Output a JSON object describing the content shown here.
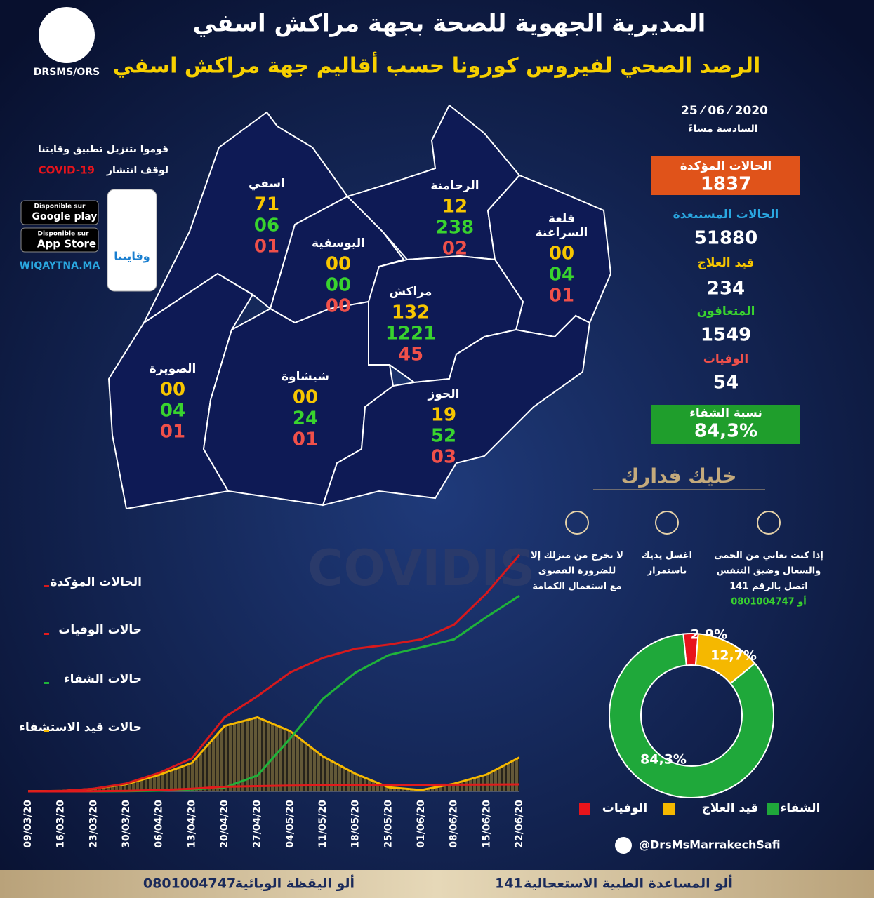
{
  "header": {
    "title": "المديرية الجهوية للصحة بجهة مراكش اسفي",
    "subtitle": "الرصد الصحي لفيروس كورونا حسب أقاليم جهة مراكش اسفي",
    "logo_label": "DRSMS/ORS"
  },
  "date": {
    "day": "25 ⁄ 06 ⁄ 2020",
    "time": "السادسة مساءً"
  },
  "stats": [
    {
      "label": "الحالات المؤكدة",
      "value": "1837"
    },
    {
      "label": "الحالات المستبعدة",
      "value": "51880"
    },
    {
      "label": "قيد العلاج",
      "value": "234"
    },
    {
      "label": "المتعافون",
      "value": "1549"
    },
    {
      "label": "الوفيات",
      "value": "54"
    },
    {
      "label": "نسبة الشفاء",
      "value": "84,3%"
    }
  ],
  "provinces": [
    {
      "name": [
        "اسفي"
      ],
      "values": [
        "71",
        "06",
        "01"
      ]
    },
    {
      "name": [
        "اليوسفية"
      ],
      "values": [
        "00",
        "00",
        "00"
      ]
    },
    {
      "name": [
        "الرحامنة"
      ],
      "values": [
        "12",
        "238",
        "02"
      ]
    },
    {
      "name": [
        "قلعة",
        "السراغنة"
      ],
      "values": [
        "00",
        "04",
        "01"
      ]
    },
    {
      "name": [
        "مراكش"
      ],
      "values": [
        "132",
        "1221",
        "45"
      ]
    },
    {
      "name": [
        "الصويرة"
      ],
      "values": [
        "00",
        "04",
        "01"
      ]
    },
    {
      "name": [
        "شيشاوة"
      ],
      "values": [
        "00",
        "24",
        "01"
      ]
    },
    {
      "name": [
        "الحوز"
      ],
      "values": [
        "19",
        "52",
        "03"
      ]
    }
  ],
  "app": {
    "line1": "قوموا بتنزيل تطبيق وقايتنا",
    "line2": "لوقف انتشار",
    "line2_highlight": "COVID-19",
    "google_small": "Disponible sur",
    "google": "Google play",
    "apple_small": "Disponible sur",
    "apple": "App Store",
    "site": "WIQAYTNA.MA",
    "app_name": "وقايتنا"
  },
  "tips": {
    "title": "خليك فدارك",
    "items": [
      {
        "lines": [
          "لا تخرج من منزلك إلا",
          "للضرورة القصوى",
          "مع استعمال الكمامة"
        ]
      },
      {
        "lines": [
          "اغسل يديك",
          "باستمرار"
        ]
      },
      {
        "lines": [
          "إذا كنت تعاني من الحمى",
          "والسعال وضيق التنفس",
          "اتصل بالرقم 141",
          "أو 0801004747"
        ]
      }
    ]
  },
  "watermark": "COVIDIS",
  "chart_data": [
    {
      "type": "line",
      "x": [
        "09/03/20",
        "16/03/20",
        "23/03/20",
        "30/03/20",
        "06/04/20",
        "13/04/20",
        "20/04/20",
        "27/04/20",
        "04/05/20",
        "11/05/20",
        "18/05/20",
        "25/05/20",
        "01/06/20",
        "08/06/20",
        "15/06/20",
        "22/06/20"
      ],
      "ylim": [
        0,
        1900
      ],
      "series": [
        {
          "name": "الحالات المؤكدة",
          "color": "#d7191c",
          "values": [
            1,
            3,
            20,
            60,
            140,
            250,
            560,
            720,
            900,
            1010,
            1080,
            1110,
            1150,
            1260,
            1500,
            1790
          ]
        },
        {
          "name": "حالات الوفيات",
          "color": "#e31a1c",
          "values": [
            0,
            0,
            1,
            4,
            10,
            20,
            35,
            40,
            44,
            46,
            48,
            49,
            50,
            51,
            52,
            53
          ]
        },
        {
          "name": "حالات الشفاء",
          "color": "#1fb33a",
          "values": [
            0,
            0,
            0,
            1,
            5,
            15,
            30,
            120,
            400,
            700,
            900,
            1030,
            1090,
            1150,
            1320,
            1480
          ]
        },
        {
          "name": "حالات قيد الاستشفاء",
          "color": "#f5b800",
          "values": [
            1,
            3,
            19,
            55,
            125,
            215,
            495,
            560,
            456,
            264,
            132,
            31,
            10,
            58,
            128,
            257
          ]
        }
      ]
    },
    {
      "type": "pie",
      "donut": true,
      "categories": [
        "الوفيات",
        "قيد العلاج",
        "الشفاء"
      ],
      "values": [
        2.9,
        12.7,
        84.3
      ],
      "value_labels": [
        "2,9%",
        "12,7%",
        "84,3%"
      ],
      "colors": [
        "#e8141b",
        "#f5b800",
        "#1fa83a"
      ]
    }
  ],
  "footer": {
    "social": "@DrsMsMarrakechSafi",
    "hotline_label": "ألو المساعدة الطبية الاستعجالية",
    "hotline": "141",
    "epi_label": "ألو اليقظة الوبائية",
    "epi": "0801004747"
  }
}
